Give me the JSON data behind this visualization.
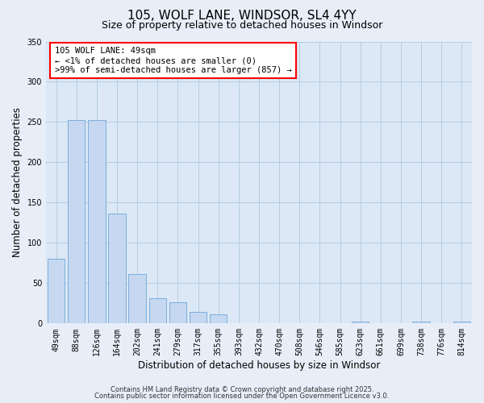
{
  "title": "105, WOLF LANE, WINDSOR, SL4 4YY",
  "subtitle": "Size of property relative to detached houses in Windsor",
  "xlabel": "Distribution of detached houses by size in Windsor",
  "ylabel": "Number of detached properties",
  "categories": [
    "49sqm",
    "88sqm",
    "126sqm",
    "164sqm",
    "202sqm",
    "241sqm",
    "279sqm",
    "317sqm",
    "355sqm",
    "393sqm",
    "432sqm",
    "470sqm",
    "508sqm",
    "546sqm",
    "585sqm",
    "623sqm",
    "661sqm",
    "699sqm",
    "738sqm",
    "776sqm",
    "814sqm"
  ],
  "values": [
    80,
    252,
    252,
    136,
    61,
    31,
    26,
    14,
    11,
    0,
    0,
    0,
    0,
    0,
    0,
    2,
    0,
    0,
    2,
    0,
    2
  ],
  "bar_color": "#c5d8f0",
  "bar_edge_color": "#5b9bd5",
  "ylim": [
    0,
    350
  ],
  "yticks": [
    0,
    50,
    100,
    150,
    200,
    250,
    300,
    350
  ],
  "annotation_title": "105 WOLF LANE: 49sqm",
  "annotation_line1": "← <1% of detached houses are smaller (0)",
  "annotation_line2": ">99% of semi-detached houses are larger (857) →",
  "footnote1": "Contains HM Land Registry data © Crown copyright and database right 2025.",
  "footnote2": "Contains public sector information licensed under the Open Government Licence v3.0.",
  "bg_color": "#e8eef8",
  "plot_bg_color": "#dce8f5",
  "grid_color": "#b0c8e0",
  "title_fontsize": 11,
  "subtitle_fontsize": 9,
  "axis_label_fontsize": 8.5,
  "tick_fontsize": 7,
  "annotation_fontsize": 7.5,
  "footnote_fontsize": 6
}
